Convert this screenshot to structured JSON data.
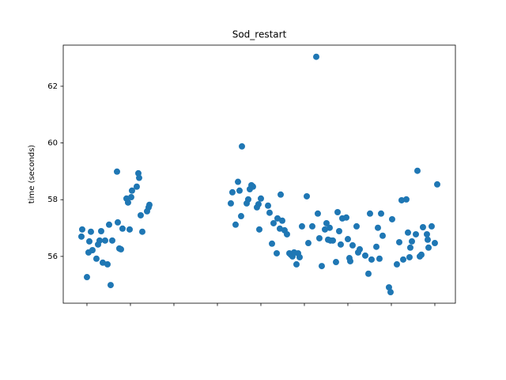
{
  "chart_data": {
    "type": "scatter",
    "title": "Sod_restart",
    "ylabel": "time (seconds)",
    "color": "#1f77b4",
    "xlim": [
      -0.545,
      8.473
    ],
    "ylim": [
      54.35,
      63.45
    ],
    "xticks": [
      0,
      1,
      2,
      3,
      4,
      5,
      6,
      7,
      8
    ],
    "xtick_labels": false,
    "yticks": [
      56,
      58,
      60,
      62
    ],
    "x": [
      -0.127,
      -0.109,
      0,
      0.036,
      0.055,
      0.091,
      0.127,
      0.218,
      0.255,
      0.291,
      0.327,
      0.364,
      0.418,
      0.473,
      0.509,
      0.545,
      0.582,
      0.691,
      0.709,
      0.745,
      0.782,
      0.818,
      0.909,
      0.945,
      0.982,
      1.018,
      1.036,
      1.145,
      1.182,
      1.2,
      1.236,
      1.273,
      1.382,
      1.418,
      1.436,
      3.309,
      3.345,
      3.418,
      3.473,
      3.509,
      3.545,
      3.564,
      3.673,
      3.709,
      3.745,
      3.782,
      3.818,
      3.909,
      3.945,
      3.964,
      4.0,
      4.164,
      4.2,
      4.255,
      4.291,
      4.364,
      4.382,
      4.436,
      4.455,
      4.491,
      4.545,
      4.6,
      4.655,
      4.691,
      4.727,
      4.764,
      4.818,
      4.855,
      4.891,
      4.945,
      5.055,
      5.091,
      5.182,
      5.273,
      5.309,
      5.345,
      5.4,
      5.473,
      5.509,
      5.545,
      5.582,
      5.6,
      5.655,
      5.727,
      5.764,
      5.8,
      5.836,
      5.873,
      5.964,
      6.0,
      6.036,
      6.055,
      6.109,
      6.2,
      6.236,
      6.273,
      6.4,
      6.473,
      6.509,
      6.545,
      6.655,
      6.691,
      6.727,
      6.764,
      6.8,
      6.945,
      6.982,
      7.018,
      7.127,
      7.182,
      7.236,
      7.273,
      7.345,
      7.382,
      7.418,
      7.436,
      7.473,
      7.564,
      7.6,
      7.655,
      7.691,
      7.727,
      7.818,
      7.836,
      7.855,
      7.927,
      8.0,
      8.055
    ],
    "values": [
      56.7,
      56.95,
      55.27,
      56.14,
      56.53,
      56.87,
      56.22,
      55.92,
      56.42,
      56.56,
      56.89,
      55.78,
      56.56,
      55.72,
      57.12,
      54.99,
      56.56,
      58.99,
      57.2,
      56.28,
      56.25,
      56.98,
      58.04,
      57.9,
      56.95,
      58.09,
      58.32,
      58.46,
      58.93,
      58.77,
      57.45,
      56.87,
      57.59,
      57.73,
      57.82,
      57.87,
      58.26,
      57.12,
      58.63,
      58.32,
      57.42,
      59.88,
      57.87,
      58.01,
      58.37,
      58.51,
      58.46,
      57.73,
      57.84,
      56.95,
      58.04,
      57.79,
      57.54,
      56.45,
      57.17,
      56.11,
      57.34,
      56.98,
      58.18,
      57.26,
      56.92,
      56.78,
      56.11,
      56.06,
      56.0,
      56.14,
      55.72,
      56.11,
      55.97,
      57.06,
      58.12,
      56.47,
      57.06,
      63.04,
      57.51,
      56.64,
      55.66,
      56.95,
      57.17,
      56.59,
      57.01,
      56.56,
      56.56,
      55.8,
      57.56,
      56.89,
      56.42,
      57.34,
      57.37,
      56.61,
      55.94,
      55.83,
      56.39,
      57.06,
      56.14,
      56.25,
      56.03,
      55.39,
      57.51,
      55.89,
      56.34,
      57.01,
      55.92,
      57.51,
      56.73,
      54.91,
      54.74,
      57.31,
      55.72,
      56.5,
      57.98,
      55.89,
      58.01,
      56.84,
      55.97,
      56.31,
      56.53,
      56.78,
      59.02,
      56.0,
      56.06,
      57.03,
      56.78,
      56.59,
      56.31,
      57.06,
      56.47,
      58.54
    ]
  }
}
